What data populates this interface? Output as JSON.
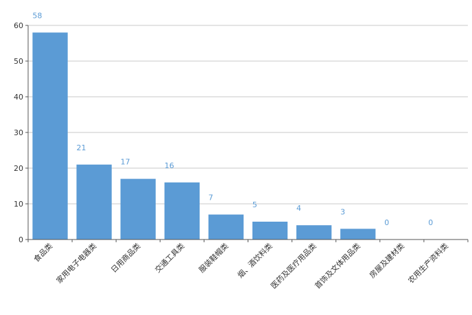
{
  "chart_data": {
    "type": "bar",
    "categories": [
      "食品类",
      "家用电子电器类",
      "日用商品类",
      "交通工具类",
      "服装鞋帽类",
      "烟、酒饮料类",
      "医药及医疗用品类",
      "首饰及文体用品类",
      "房屋及建材类",
      "农用生产资料类"
    ],
    "values": [
      58,
      21,
      17,
      16,
      7,
      5,
      4,
      3,
      0,
      0
    ],
    "ylim": [
      0,
      60
    ],
    "yticks": [
      0,
      10,
      20,
      30,
      40,
      50,
      60
    ],
    "grid": true,
    "legend": "none",
    "title": "",
    "xlabel": "",
    "ylabel": "",
    "bar_color": "#5b9bd5"
  }
}
